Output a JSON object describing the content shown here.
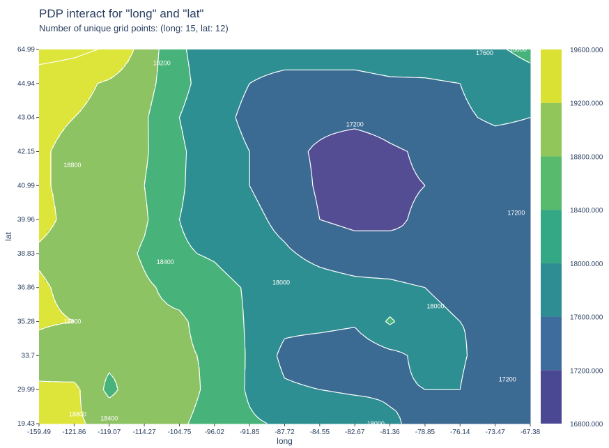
{
  "title": "PDP interact for \"long\" and \"lat\"",
  "subtitle": "Number of unique grid points: (long: 15, lat: 12)",
  "chart_data": {
    "type": "contour",
    "title": "PDP interact for \"long\" and \"lat\"",
    "subtitle": "Number of unique grid points: (long: 15, lat: 12)",
    "xlabel": "long",
    "ylabel": "lat",
    "x_ticks": [
      "-159.49",
      "-121.86",
      "-119.07",
      "-114.27",
      "-104.75",
      "-96.02",
      "-91.85",
      "-87.72",
      "-84.55",
      "-82.67",
      "-81.36",
      "-78.85",
      "-76.14",
      "-73.47",
      "-67.38"
    ],
    "y_ticks": [
      "19.43",
      "29.99",
      "33.7",
      "35.28",
      "36.86",
      "38.83",
      "39.96",
      "40.99",
      "42.15",
      "43.04",
      "44.94",
      "64.99"
    ],
    "z": [
      [
        18900,
        18850,
        18700,
        18500,
        18450,
        18250,
        18050,
        17950,
        17900,
        17850,
        17650,
        17500,
        17400,
        17300,
        17250
      ],
      [
        18850,
        18900,
        18300,
        18700,
        18550,
        18300,
        17950,
        17650,
        17600,
        17550,
        17550,
        17600,
        17600,
        17300,
        17250
      ],
      [
        18650,
        18450,
        18500,
        18450,
        18450,
        18350,
        17950,
        17500,
        17400,
        17350,
        17500,
        17700,
        17650,
        17400,
        17250
      ],
      [
        18850,
        18800,
        18500,
        18450,
        18450,
        18250,
        17950,
        17700,
        17700,
        17650,
        18050,
        17700,
        17600,
        17550,
        17300
      ],
      [
        18850,
        18700,
        18650,
        18450,
        18300,
        18150,
        17950,
        17800,
        17750,
        17700,
        17700,
        17600,
        17500,
        17450,
        17350
      ],
      [
        18750,
        18650,
        18600,
        18350,
        18050,
        17950,
        17750,
        17650,
        17500,
        17400,
        17300,
        17200,
        17250,
        17300,
        17400
      ],
      [
        18900,
        18700,
        18650,
        18450,
        18000,
        17800,
        17700,
        17500,
        17200,
        17100,
        17150,
        17250,
        17350,
        17350,
        17400
      ],
      [
        18850,
        18700,
        18700,
        18400,
        18050,
        17750,
        17600,
        17400,
        17150,
        17000,
        17150,
        17200,
        17300,
        17350,
        17400
      ],
      [
        18850,
        18700,
        18700,
        18450,
        18050,
        17800,
        17600,
        17300,
        17150,
        17000,
        17150,
        17250,
        17400,
        17450,
        17450
      ],
      [
        18900,
        18800,
        18700,
        18450,
        18000,
        17750,
        17500,
        17300,
        17300,
        17300,
        17350,
        17450,
        17550,
        17650,
        17600
      ],
      [
        18950,
        18900,
        18750,
        18550,
        18100,
        17800,
        17600,
        17500,
        17500,
        17500,
        17550,
        17550,
        17600,
        17750,
        17850
      ],
      [
        19400,
        19300,
        19150,
        18650,
        18050,
        17800,
        17750,
        17750,
        17750,
        17750,
        17800,
        17850,
        17900,
        17950,
        18100
      ]
    ],
    "contour_levels": [
      16800,
      17200,
      17600,
      18000,
      18400,
      18800,
      19200,
      19600
    ],
    "contour_labels": [
      {
        "text": "19200",
        "long_idx": 3.5,
        "lat_idx": 10.6
      },
      {
        "text": "18800",
        "long_idx": 0.95,
        "lat_idx": 7.6
      },
      {
        "text": "18400",
        "long_idx": 3.6,
        "lat_idx": 4.75
      },
      {
        "text": "18800",
        "long_idx": 0.95,
        "lat_idx": 3.0
      },
      {
        "text": "18000",
        "long_idx": 6.9,
        "lat_idx": 4.15
      },
      {
        "text": "17200",
        "long_idx": 9.0,
        "lat_idx": 8.8
      },
      {
        "text": "17600",
        "long_idx": 12.7,
        "lat_idx": 10.9
      },
      {
        "text": "18000",
        "long_idx": 13.65,
        "lat_idx": 11.0
      },
      {
        "text": "17200",
        "long_idx": 13.6,
        "lat_idx": 6.2
      },
      {
        "text": "18000",
        "long_idx": 11.3,
        "lat_idx": 3.45
      },
      {
        "text": "17200",
        "long_idx": 13.35,
        "lat_idx": 1.3
      },
      {
        "text": "18800",
        "long_idx": 1.1,
        "lat_idx": 0.28
      },
      {
        "text": "18400",
        "long_idx": 2.0,
        "lat_idx": 0.15
      },
      {
        "text": "18000",
        "long_idx": 9.6,
        "lat_idx": 0.0
      }
    ],
    "colorbar": {
      "bands": [
        "#440154",
        "#4b4893",
        "#3d6c9d",
        "#2e8c93",
        "#34a784",
        "#58ba6c",
        "#91c65a",
        "#dbe133"
      ],
      "fill_colors": [
        "#544d94",
        "#3b6a93",
        "#2e8f92",
        "#47b37a",
        "#8ec364",
        "#dde43a"
      ],
      "tick_labels": [
        "16800.000",
        "17200.000",
        "17600.000",
        "18000.000",
        "18400.000",
        "18800.000",
        "19200.000",
        "19600.000"
      ]
    },
    "grid": false
  }
}
